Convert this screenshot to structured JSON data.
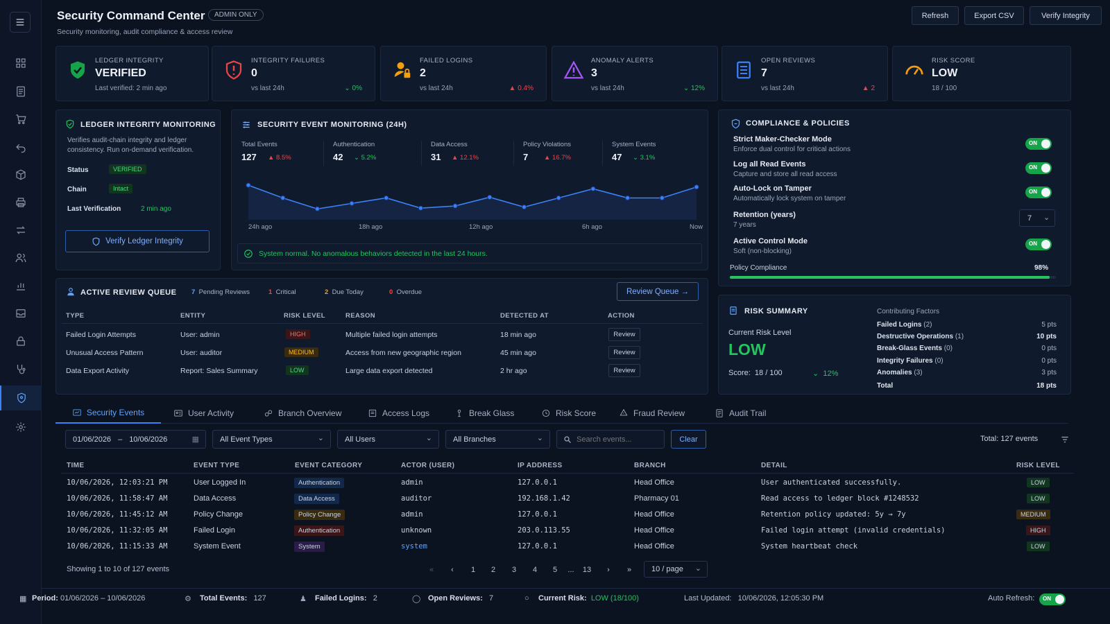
{
  "header": {
    "title": "Security Command Center",
    "badge": "ADMIN ONLY",
    "subtitle": "Security monitoring, audit compliance & access review",
    "buttons": {
      "refresh": "Refresh",
      "export": "Export CSV",
      "verify": "Verify Integrity"
    }
  },
  "kpis": [
    {
      "label": "LEDGER INTEGRITY",
      "value": "VERIFIED",
      "sub": "Last verified: 2 min ago",
      "change": "",
      "icon": "shield-check-icon",
      "color": "#22c55e"
    },
    {
      "label": "INTEGRITY FAILURES",
      "value": "0",
      "sub": "vs last 24h",
      "change": "0%",
      "icon": "shield-alert-icon",
      "color": "#ef4444"
    },
    {
      "label": "FAILED LOGINS",
      "value": "2",
      "sub": "vs last 24h",
      "change": "0.4%",
      "icon": "user-lock-icon",
      "color": "#f59e0b"
    },
    {
      "label": "ANOMALY ALERTS",
      "value": "3",
      "sub": "vs last 24h",
      "change": "12%",
      "icon": "warning-triangle-icon",
      "color": "#a855f7"
    },
    {
      "label": "OPEN REVIEWS",
      "value": "7",
      "sub": "vs last 24h",
      "change": "2",
      "icon": "clipboard-icon",
      "color": "#3b82f6"
    },
    {
      "label": "RISK SCORE",
      "value": "LOW",
      "sub": "18 / 100",
      "change": "",
      "icon": "gauge-icon",
      "color": "#f59e0b"
    }
  ],
  "ledger": {
    "title": "LEDGER INTEGRITY MONITORING",
    "desc_line1": "Verifies audit-chain integrity and ledger",
    "desc_line2": "consistency. Run on-demand verification.",
    "status_label": "Status",
    "status_value": "VERIFIED",
    "chain_label": "Chain",
    "chain_value": "Intact",
    "last_label": "Last Verification",
    "last_value": "2 min ago",
    "button": "Verify Ledger Integrity"
  },
  "events": {
    "title": "SECURITY EVENT MONITORING (24H)",
    "stats": [
      {
        "label": "Total Events",
        "value": "127",
        "change": "8.5%",
        "dir": "up"
      },
      {
        "label": "Authentication",
        "value": "42",
        "change": "5.2%",
        "dir": "down"
      },
      {
        "label": "Data Access",
        "value": "31",
        "change": "12.1%",
        "dir": "up"
      },
      {
        "label": "Policy Violations",
        "value": "7",
        "change": "16.7%",
        "dir": "up"
      },
      {
        "label": "System Events",
        "value": "47",
        "change": "3.1%",
        "dir": "down"
      }
    ],
    "xlabels": [
      "24h ago",
      "18h ago",
      "12h ago",
      "6h ago",
      "Now"
    ],
    "series": [
      9.5,
      6,
      3,
      4.5,
      6,
      3.2,
      3.8,
      6.2,
      3.5,
      6,
      8.5,
      6,
      6,
      9
    ],
    "status": "System normal. No anomalous behaviors detected in the last 24 hours."
  },
  "compliance": {
    "title": "COMPLIANCE & POLICIES",
    "toggle_label": "ON",
    "items": [
      {
        "name": "Strict Maker-Checker Mode",
        "desc": "Enforce dual control for critical actions"
      },
      {
        "name": "Log all Read Events",
        "desc": "Capture and store all read access"
      },
      {
        "name": "Auto-Lock on Tamper",
        "desc": "Automatically lock system on tamper"
      }
    ],
    "retention_name": "Retention (years)",
    "retention_desc": "7 years",
    "retention_value": "7",
    "active_name": "Active Control Mode",
    "active_desc": "Soft (non-blocking)",
    "policy_label": "Policy Compliance",
    "policy_value": "98%",
    "policy_fraction": 0.98
  },
  "queue": {
    "title": "ACTIVE REVIEW QUEUE",
    "pending_count": "7",
    "pending_label": "Pending Reviews",
    "critical_count": "1",
    "critical_label": "Critical",
    "due_count": "2",
    "due_label": "Due Today",
    "overdue_count": "0",
    "overdue_label": "Overdue",
    "button": "Review Queue →",
    "columns": [
      "TYPE",
      "ENTITY",
      "RISK LEVEL",
      "REASON",
      "DETECTED AT",
      "ACTION"
    ],
    "rows": [
      {
        "type": "Failed Login Attempts",
        "entity": "User: admin",
        "risk": "HIGH",
        "reason": "Multiple failed login attempts",
        "detected": "18 min ago",
        "action": "Review"
      },
      {
        "type": "Unusual Access Pattern",
        "entity": "User: auditor",
        "risk": "MEDIUM",
        "reason": "Access from new geographic region",
        "detected": "45 min ago",
        "action": "Review"
      },
      {
        "type": "Data Export Activity",
        "entity": "Report: Sales Summary",
        "risk": "LOW",
        "reason": "Large data export detected",
        "detected": "2 hr ago",
        "action": "Review"
      }
    ]
  },
  "risk": {
    "title": "RISK SUMMARY",
    "current_label": "Current Risk Level",
    "level": "LOW",
    "score_label": "Score:",
    "score": "18 / 100",
    "change": "12%",
    "factors_title": "Contributing Factors",
    "factors": [
      {
        "name": "Failed Logins",
        "count": "(2)",
        "pts": "5 pts"
      },
      {
        "name": "Destructive Operations",
        "count": "(1)",
        "pts": "10 pts"
      },
      {
        "name": "Break-Glass Events",
        "count": "(0)",
        "pts": "0 pts"
      },
      {
        "name": "Integrity Failures",
        "count": "(0)",
        "pts": "0 pts"
      },
      {
        "name": "Anomalies",
        "count": "(3)",
        "pts": "3 pts"
      }
    ],
    "total_label": "Total",
    "total_pts": "18 pts"
  },
  "tabs": [
    "Security Events",
    "User Activity",
    "Branch Overview",
    "Access Logs",
    "Break Glass",
    "Risk Score",
    "Fraud Review",
    "Audit Trail"
  ],
  "filters": {
    "date_from": "01/06/2026",
    "date_sep": "–",
    "date_to": "10/06/2026",
    "event_types": "All Event Types",
    "users": "All Users",
    "branches": "All Branches",
    "search_placeholder": "Search events...",
    "clear": "Clear",
    "total": "Total: 127 events"
  },
  "table": {
    "columns": [
      "TIME",
      "EVENT TYPE",
      "EVENT CATEGORY",
      "ACTOR (USER)",
      "IP ADDRESS",
      "BRANCH",
      "DETAIL",
      "RISK LEVEL"
    ],
    "rows": [
      {
        "time": "10/06/2026, 12:03:21 PM",
        "event": "User Logged In",
        "category": "Authentication",
        "cat_style": "tb",
        "actor": "admin",
        "ip": "127.0.0.1",
        "branch": "Head Office",
        "detail": "User authenticated successfully.",
        "risk": "LOW"
      },
      {
        "time": "10/06/2026, 11:58:47 AM",
        "event": "Data Access",
        "category": "Data Access",
        "cat_style": "tb",
        "actor": "auditor",
        "ip": "192.168.1.42",
        "branch": "Pharmacy 01",
        "detail": "Read access to ledger block #1248532",
        "risk": "LOW"
      },
      {
        "time": "10/06/2026, 11:45:12 AM",
        "event": "Policy Change",
        "category": "Policy Change",
        "cat_style": "ty",
        "actor": "admin",
        "ip": "127.0.0.1",
        "branch": "Head Office",
        "detail": "Retention policy updated: 5y → 7y",
        "risk": "MEDIUM"
      },
      {
        "time": "10/06/2026, 11:32:05 AM",
        "event": "Failed Login",
        "category": "Authentication",
        "cat_style": "tr",
        "actor": "unknown",
        "ip": "203.0.113.55",
        "branch": "Head Office",
        "detail": "Failed login attempt (invalid credentials)",
        "risk": "HIGH"
      },
      {
        "time": "10/06/2026, 11:15:33 AM",
        "event": "System Event",
        "category": "System",
        "cat_style": "tp",
        "actor": "system",
        "ip": "127.0.0.1",
        "branch": "Head Office",
        "detail": "System heartbeat check",
        "risk": "LOW"
      }
    ],
    "showing": "Showing 1 to 10 of 127 events",
    "pages": [
      "1",
      "2",
      "3",
      "4",
      "5",
      "...",
      "13"
    ],
    "per_page": "10 / page"
  },
  "footer": {
    "period_label": "Period:",
    "period": "01/06/2026 – 10/06/2026",
    "total_label": "Total Events:",
    "total": "127",
    "failed_label": "Failed Logins:",
    "failed": "2",
    "reviews_label": "Open Reviews:",
    "reviews": "7",
    "risk_label": "Current Risk:",
    "risk": "LOW (18/100)",
    "updated_label": "Last Updated:",
    "updated": "10/06/2026, 12:05:30 PM",
    "auto_label": "Auto Refresh:",
    "auto": "ON"
  },
  "sidebar": [
    "dashboard-icon",
    "document-icon",
    "cart-icon",
    "undo-icon",
    "box-icon",
    "printer-icon",
    "transfer-icon",
    "users-icon",
    "chart-icon",
    "inbox-icon",
    "lock-icon",
    "stethoscope-icon",
    "shield-icon",
    "settings-icon"
  ]
}
